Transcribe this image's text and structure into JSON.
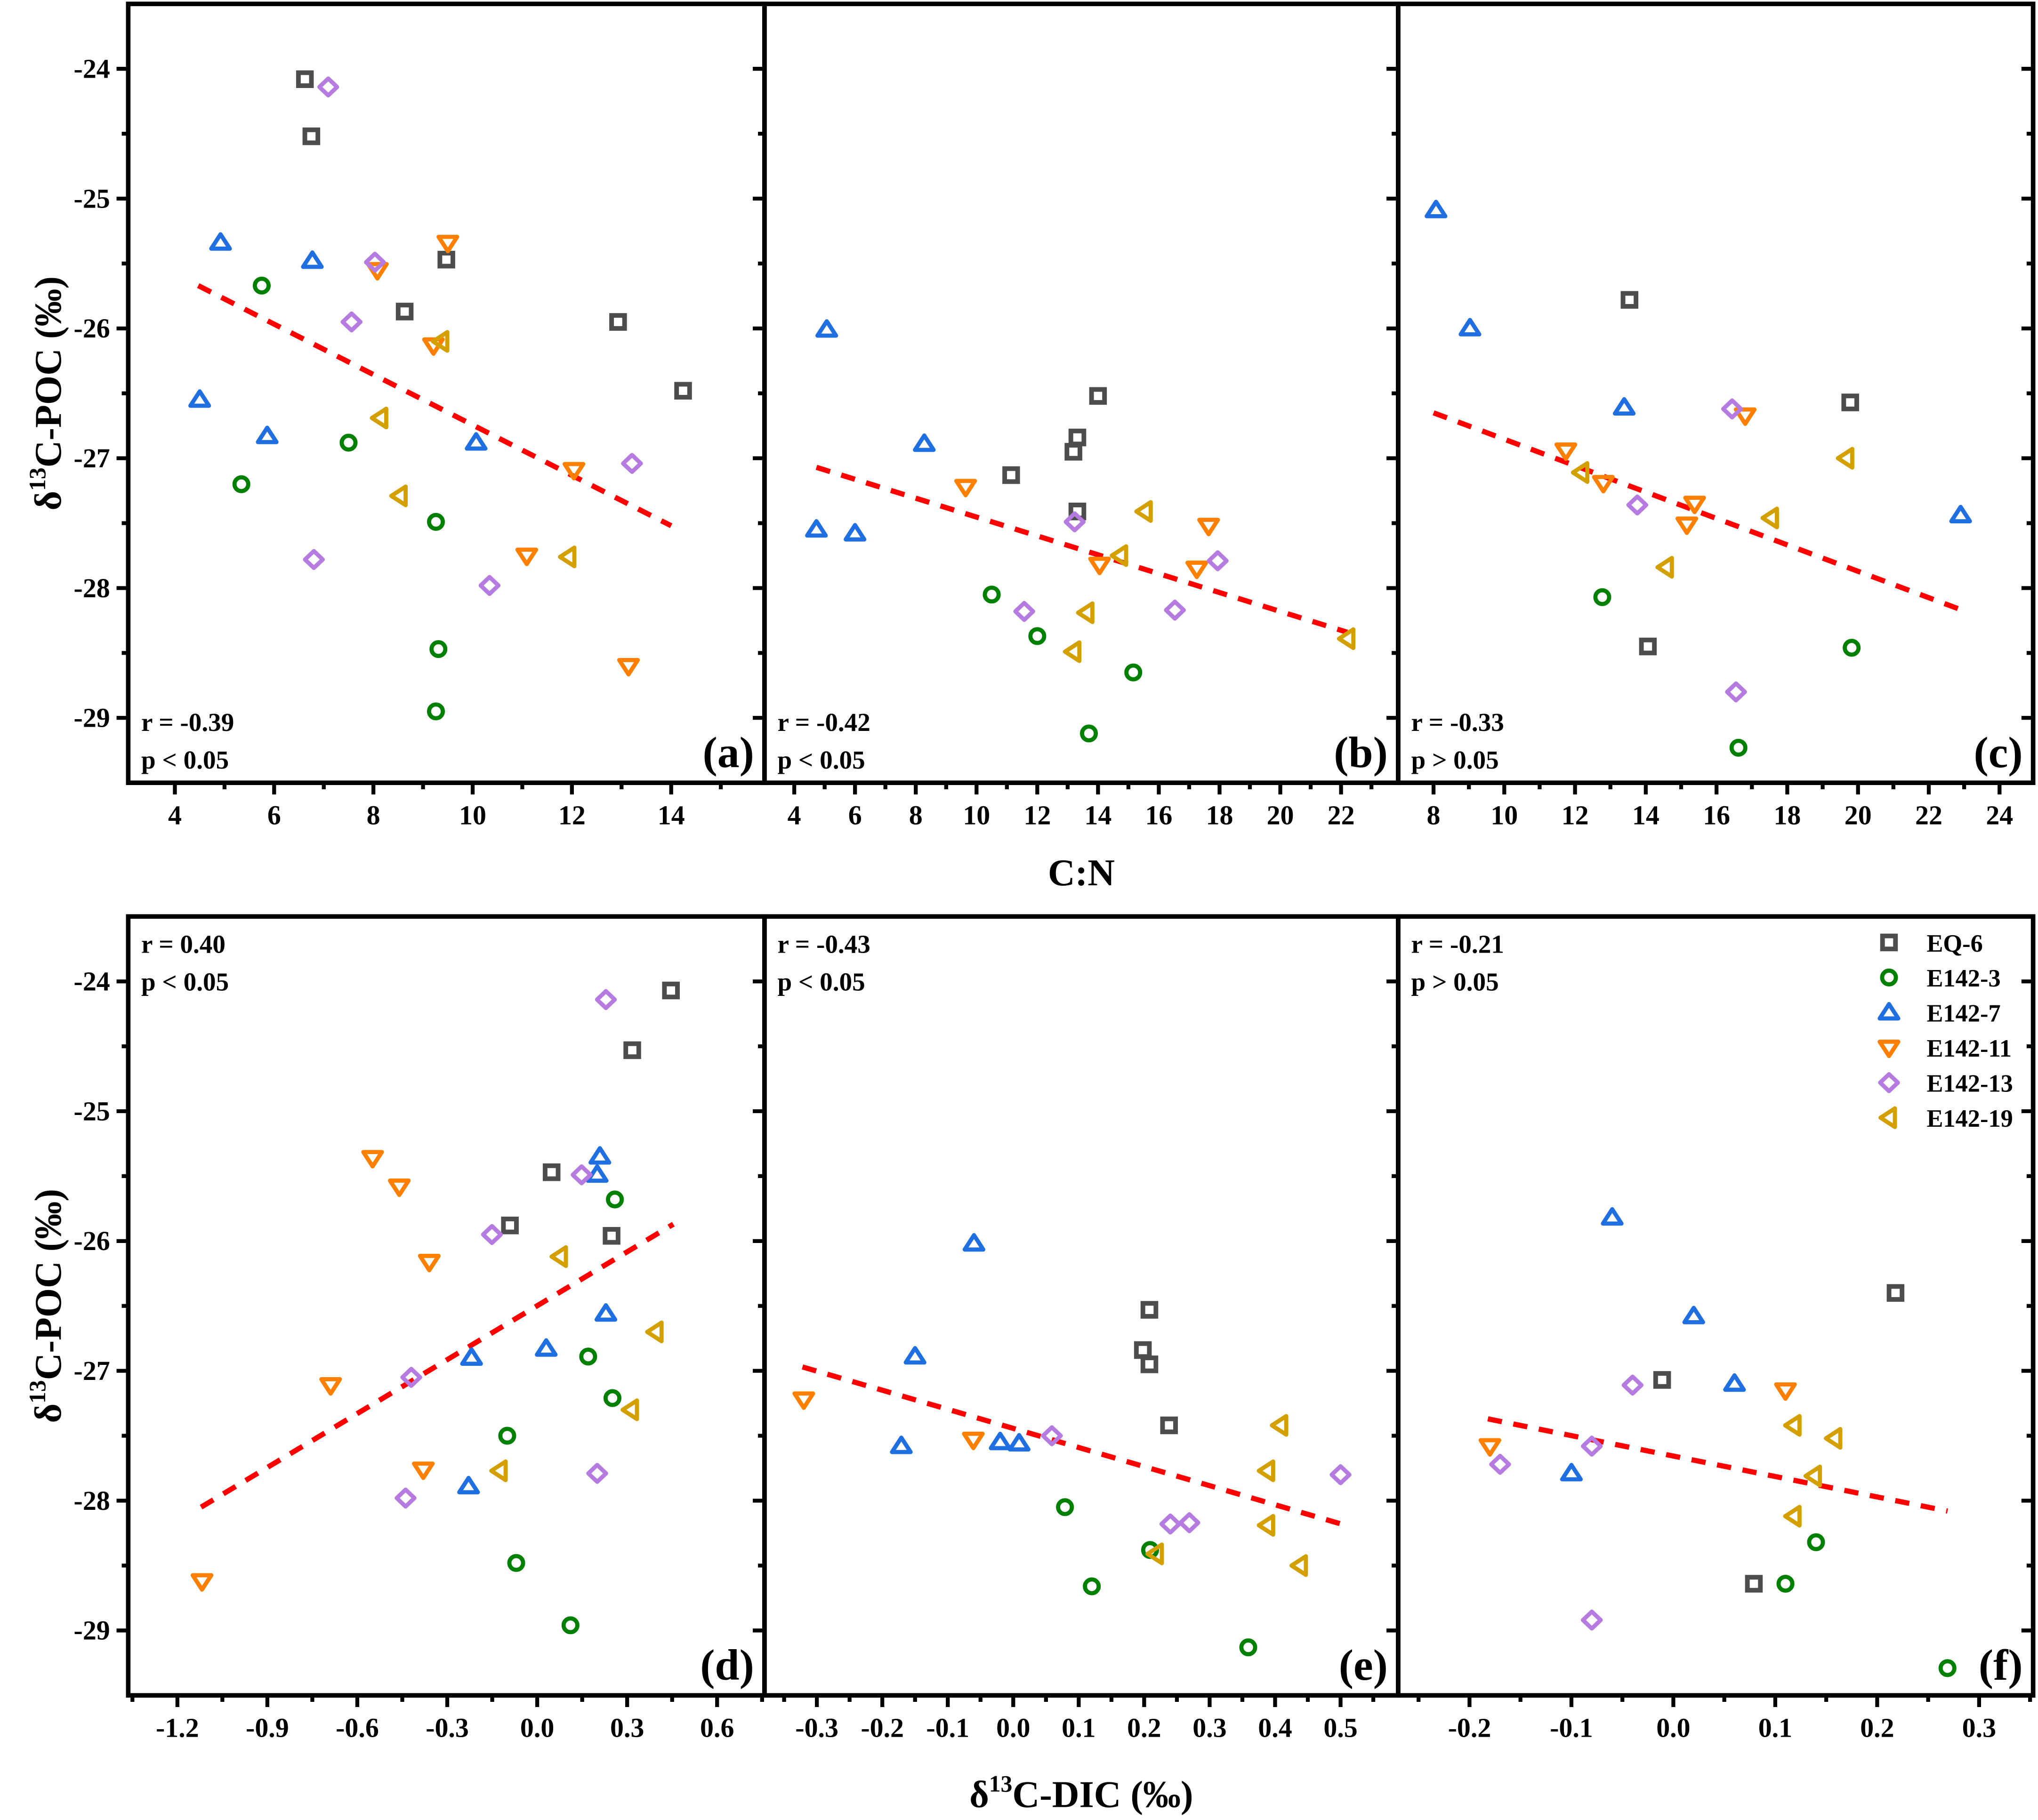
{
  "axes": {
    "top_xlabel": "C:N",
    "bottom_xlabel": {
      "pre": "δ",
      "sup": "13",
      "post": "C-DIC (‰)"
    },
    "ylabel": {
      "pre": "δ",
      "sup": "13",
      "post": "C-POC (‰)"
    }
  },
  "legend": [
    {
      "name": "EQ-6",
      "marker": "square",
      "color": "#4d4d4d"
    },
    {
      "name": "E142-3",
      "marker": "circle",
      "color": "#008000"
    },
    {
      "name": "E142-7",
      "marker": "triangle-up",
      "color": "#1f6fe0"
    },
    {
      "name": "E142-11",
      "marker": "triangle-down",
      "color": "#ff8000"
    },
    {
      "name": "E142-13",
      "marker": "diamond",
      "color": "#b57be0"
    },
    {
      "name": "E142-19",
      "marker": "triangle-left",
      "color": "#d4a000"
    }
  ],
  "trend_color": "#ff0000",
  "chart_data": [
    {
      "type": "scatter",
      "label": "(a)",
      "r": "r = -0.39",
      "p": "p < 0.05",
      "stats_pos": "bottom-left",
      "xlim": [
        3.06,
        15.88
      ],
      "ylim": [
        -29.5,
        -23.5
      ],
      "xticks": [
        4,
        6,
        8,
        10,
        12,
        14
      ],
      "xminor": 1,
      "yticks": [
        -24,
        -25,
        -26,
        -27,
        -28,
        -29
      ],
      "show_yticklabels": true,
      "grid": false,
      "series": [
        [
          [
            6.62,
            -24.08
          ],
          [
            6.75,
            -24.52
          ],
          [
            9.47,
            -25.47
          ],
          [
            8.63,
            -25.87
          ],
          [
            12.93,
            -25.95
          ],
          [
            14.24,
            -26.48
          ]
        ],
        [
          [
            5.75,
            -25.67
          ],
          [
            7.5,
            -26.88
          ],
          [
            5.34,
            -27.2
          ],
          [
            9.26,
            -27.49
          ],
          [
            9.31,
            -28.47
          ],
          [
            9.26,
            -28.95
          ]
        ],
        [
          [
            4.92,
            -25.34
          ],
          [
            6.77,
            -25.48
          ],
          [
            4.5,
            -26.55
          ],
          [
            5.86,
            -26.83
          ],
          [
            10.07,
            -26.88
          ]
        ],
        [
          [
            9.5,
            -25.34
          ],
          [
            8.08,
            -25.55
          ],
          [
            9.21,
            -26.13
          ],
          [
            11.09,
            -27.75
          ],
          [
            12.04,
            -27.09
          ],
          [
            13.14,
            -28.6
          ]
        ],
        [
          [
            7.09,
            -24.14
          ],
          [
            8.03,
            -25.49
          ],
          [
            7.56,
            -25.95
          ],
          [
            13.21,
            -27.04
          ],
          [
            6.8,
            -27.78
          ],
          [
            10.34,
            -27.98
          ]
        ],
        [
          [
            9.37,
            -26.1
          ],
          [
            8.14,
            -26.69
          ],
          [
            8.53,
            -27.29
          ],
          [
            11.93,
            -27.76
          ]
        ]
      ],
      "trend": [
        [
          4.47,
          -25.67
        ],
        [
          14.0,
          -27.52
        ]
      ]
    },
    {
      "type": "scatter",
      "label": "(b)",
      "r": "r = -0.42",
      "p": "p < 0.05",
      "stats_pos": "bottom-left",
      "xlim": [
        3.02,
        23.88
      ],
      "ylim": [
        -29.5,
        -23.5
      ],
      "xticks": [
        4,
        6,
        8,
        10,
        12,
        14,
        16,
        18,
        20,
        22
      ],
      "xminor": 1,
      "yticks": [
        -24,
        -25,
        -26,
        -27,
        -28,
        -29
      ],
      "show_yticklabels": false,
      "grid": false,
      "series": [
        [
          [
            14.0,
            -26.52
          ],
          [
            13.32,
            -26.84
          ],
          [
            13.19,
            -26.95
          ],
          [
            11.14,
            -27.13
          ],
          [
            13.32,
            -27.41
          ]
        ],
        [
          [
            10.5,
            -28.05
          ],
          [
            12.0,
            -28.37
          ],
          [
            15.16,
            -28.65
          ],
          [
            13.7,
            -29.12
          ]
        ],
        [
          [
            5.07,
            -26.01
          ],
          [
            8.28,
            -26.89
          ],
          [
            4.73,
            -27.55
          ],
          [
            6.0,
            -27.58
          ]
        ],
        [
          [
            9.64,
            -27.22
          ],
          [
            14.05,
            -27.82
          ],
          [
            17.64,
            -27.52
          ],
          [
            17.25,
            -27.85
          ]
        ],
        [
          [
            13.23,
            -27.49
          ],
          [
            11.57,
            -28.18
          ],
          [
            16.53,
            -28.17
          ],
          [
            17.94,
            -27.79
          ]
        ],
        [
          [
            15.54,
            -27.41
          ],
          [
            14.73,
            -27.75
          ],
          [
            13.62,
            -28.19
          ],
          [
            13.19,
            -28.49
          ],
          [
            22.21,
            -28.39
          ]
        ]
      ],
      "trend": [
        [
          4.73,
          -27.07
        ],
        [
          22.2,
          -28.34
        ]
      ]
    },
    {
      "type": "scatter",
      "label": "(c)",
      "r": "r = -0.33",
      "p": "p > 0.05",
      "stats_pos": "bottom-left",
      "xlim": [
        7.0,
        24.95
      ],
      "ylim": [
        -29.5,
        -23.5
      ],
      "xticks": [
        8,
        10,
        12,
        14,
        16,
        18,
        20,
        22,
        24
      ],
      "xminor": 1,
      "yticks": [
        -24,
        -25,
        -26,
        -27,
        -28,
        -29
      ],
      "show_yticklabels": false,
      "grid": false,
      "series": [
        [
          [
            13.54,
            -25.78
          ],
          [
            19.78,
            -26.57
          ],
          [
            14.06,
            -28.45
          ]
        ],
        [
          [
            12.77,
            -28.07
          ],
          [
            19.82,
            -28.46
          ],
          [
            16.62,
            -29.23
          ]
        ],
        [
          [
            8.07,
            -25.09
          ],
          [
            9.03,
            -26.0
          ],
          [
            13.39,
            -26.61
          ],
          [
            22.9,
            -27.44
          ]
        ],
        [
          [
            11.74,
            -26.94
          ],
          [
            12.8,
            -27.19
          ],
          [
            15.16,
            -27.51
          ],
          [
            15.38,
            -27.35
          ],
          [
            16.81,
            -26.67
          ]
        ],
        [
          [
            16.44,
            -26.62
          ],
          [
            13.76,
            -27.36
          ],
          [
            16.55,
            -28.8
          ]
        ],
        [
          [
            12.18,
            -27.11
          ],
          [
            14.57,
            -27.84
          ],
          [
            17.54,
            -27.46
          ],
          [
            19.67,
            -27.0
          ]
        ]
      ],
      "trend": [
        [
          8.0,
          -26.65
        ],
        [
          22.94,
          -28.17
        ]
      ]
    },
    {
      "type": "scatter",
      "label": "(d)",
      "r": "r = 0.40",
      "p": "p < 0.05",
      "stats_pos": "top-left",
      "xlim": [
        -1.364,
        0.758
      ],
      "ylim": [
        -29.5,
        -23.5
      ],
      "xticks": [
        -1.2,
        -0.9,
        -0.6,
        -0.3,
        0.0,
        0.3,
        0.6
      ],
      "xminor": 0.15,
      "yticks": [
        -24,
        -25,
        -26,
        -27,
        -28,
        -29
      ],
      "show_yticklabels": true,
      "grid": false,
      "series": [
        [
          [
            0.446,
            -24.07
          ],
          [
            0.317,
            -24.53
          ],
          [
            0.048,
            -25.47
          ],
          [
            -0.091,
            -25.88
          ],
          [
            0.248,
            -25.96
          ]
        ],
        [
          [
            0.259,
            -25.68
          ],
          [
            0.17,
            -26.89
          ],
          [
            0.251,
            -27.21
          ],
          [
            -0.1,
            -27.5
          ],
          [
            -0.07,
            -28.48
          ],
          [
            0.111,
            -28.96
          ]
        ],
        [
          [
            0.209,
            -25.35
          ],
          [
            0.2,
            -25.49
          ],
          [
            0.229,
            -26.56
          ],
          [
            0.03,
            -26.83
          ],
          [
            -0.219,
            -26.9
          ],
          [
            -0.229,
            -27.89
          ]
        ],
        [
          [
            -0.549,
            -25.36
          ],
          [
            -0.46,
            -25.58
          ],
          [
            -0.36,
            -26.16
          ],
          [
            -0.689,
            -27.11
          ],
          [
            -0.38,
            -27.76
          ],
          [
            -1.118,
            -28.62
          ]
        ],
        [
          [
            0.229,
            -24.14
          ],
          [
            0.148,
            -25.49
          ],
          [
            -0.151,
            -25.95
          ],
          [
            -0.42,
            -27.05
          ],
          [
            0.2,
            -27.79
          ],
          [
            -0.439,
            -27.98
          ]
        ],
        [
          [
            0.076,
            -26.12
          ],
          [
            0.395,
            -26.7
          ],
          [
            0.313,
            -27.3
          ],
          [
            -0.125,
            -27.77
          ]
        ]
      ],
      "trend": [
        [
          -1.121,
          -28.05
        ],
        [
          0.454,
          -25.87
        ]
      ]
    },
    {
      "type": "scatter",
      "label": "(e)",
      "r": "r = -0.43",
      "p": "p < 0.05",
      "stats_pos": "top-left",
      "xlim": [
        -0.38,
        0.588
      ],
      "ylim": [
        -29.5,
        -23.5
      ],
      "xticks": [
        -0.3,
        -0.2,
        -0.1,
        0.0,
        0.1,
        0.2,
        0.3,
        0.4,
        0.5
      ],
      "xminor": 0.05,
      "yticks": [
        -24,
        -25,
        -26,
        -27,
        -28,
        -29
      ],
      "show_yticklabels": false,
      "grid": false,
      "series": [
        [
          [
            0.208,
            -26.53
          ],
          [
            0.198,
            -26.84
          ],
          [
            0.208,
            -26.95
          ],
          [
            0.238,
            -27.42
          ]
        ],
        [
          [
            0.079,
            -28.05
          ],
          [
            0.12,
            -28.66
          ],
          [
            0.209,
            -28.38
          ],
          [
            0.359,
            -29.13
          ]
        ],
        [
          [
            -0.06,
            -26.02
          ],
          [
            -0.15,
            -26.89
          ],
          [
            -0.171,
            -27.58
          ],
          [
            -0.02,
            -27.55
          ],
          [
            0.009,
            -27.56
          ]
        ],
        [
          [
            -0.32,
            -27.22
          ],
          [
            -0.061,
            -27.53
          ]
        ],
        [
          [
            0.059,
            -27.5
          ],
          [
            0.24,
            -28.18
          ],
          [
            0.269,
            -28.17
          ],
          [
            0.5,
            -27.8
          ]
        ],
        [
          [
            0.408,
            -27.42
          ],
          [
            0.388,
            -27.77
          ],
          [
            0.388,
            -28.19
          ],
          [
            0.218,
            -28.41
          ],
          [
            0.438,
            -28.5
          ]
        ]
      ],
      "trend": [
        [
          -0.322,
          -26.97
        ],
        [
          0.501,
          -28.18
        ]
      ]
    },
    {
      "type": "scatter",
      "label": "(f)",
      "r": "r = -0.21",
      "p": "p > 0.05",
      "stats_pos": "top-left",
      "xlim": [
        -0.27,
        0.353
      ],
      "ylim": [
        -29.5,
        -23.5
      ],
      "xticks": [
        -0.2,
        -0.1,
        0.0,
        0.1,
        0.2,
        0.3
      ],
      "xminor": 0.05,
      "yticks": [
        -24,
        -25,
        -26,
        -27,
        -28,
        -29
      ],
      "show_yticklabels": false,
      "grid": false,
      "legend": "top-right",
      "series": [
        [
          [
            0.218,
            -26.4
          ],
          [
            -0.011,
            -27.07
          ],
          [
            0.079,
            -28.64
          ]
        ],
        [
          [
            0.14,
            -28.32
          ],
          [
            0.11,
            -28.64
          ],
          [
            0.269,
            -29.29
          ]
        ],
        [
          [
            -0.06,
            -25.82
          ],
          [
            0.02,
            -26.58
          ],
          [
            0.06,
            -27.1
          ],
          [
            -0.1,
            -27.79
          ]
        ],
        [
          [
            0.11,
            -27.15
          ],
          [
            -0.18,
            -27.58
          ]
        ],
        [
          [
            -0.04,
            -27.11
          ],
          [
            -0.08,
            -27.58
          ],
          [
            -0.17,
            -27.72
          ],
          [
            -0.08,
            -28.92
          ]
        ],
        [
          [
            0.118,
            -27.42
          ],
          [
            0.158,
            -27.52
          ],
          [
            0.138,
            -27.81
          ],
          [
            0.118,
            -28.12
          ]
        ]
      ],
      "trend": [
        [
          -0.182,
          -27.37
        ],
        [
          0.269,
          -28.08
        ]
      ]
    }
  ]
}
